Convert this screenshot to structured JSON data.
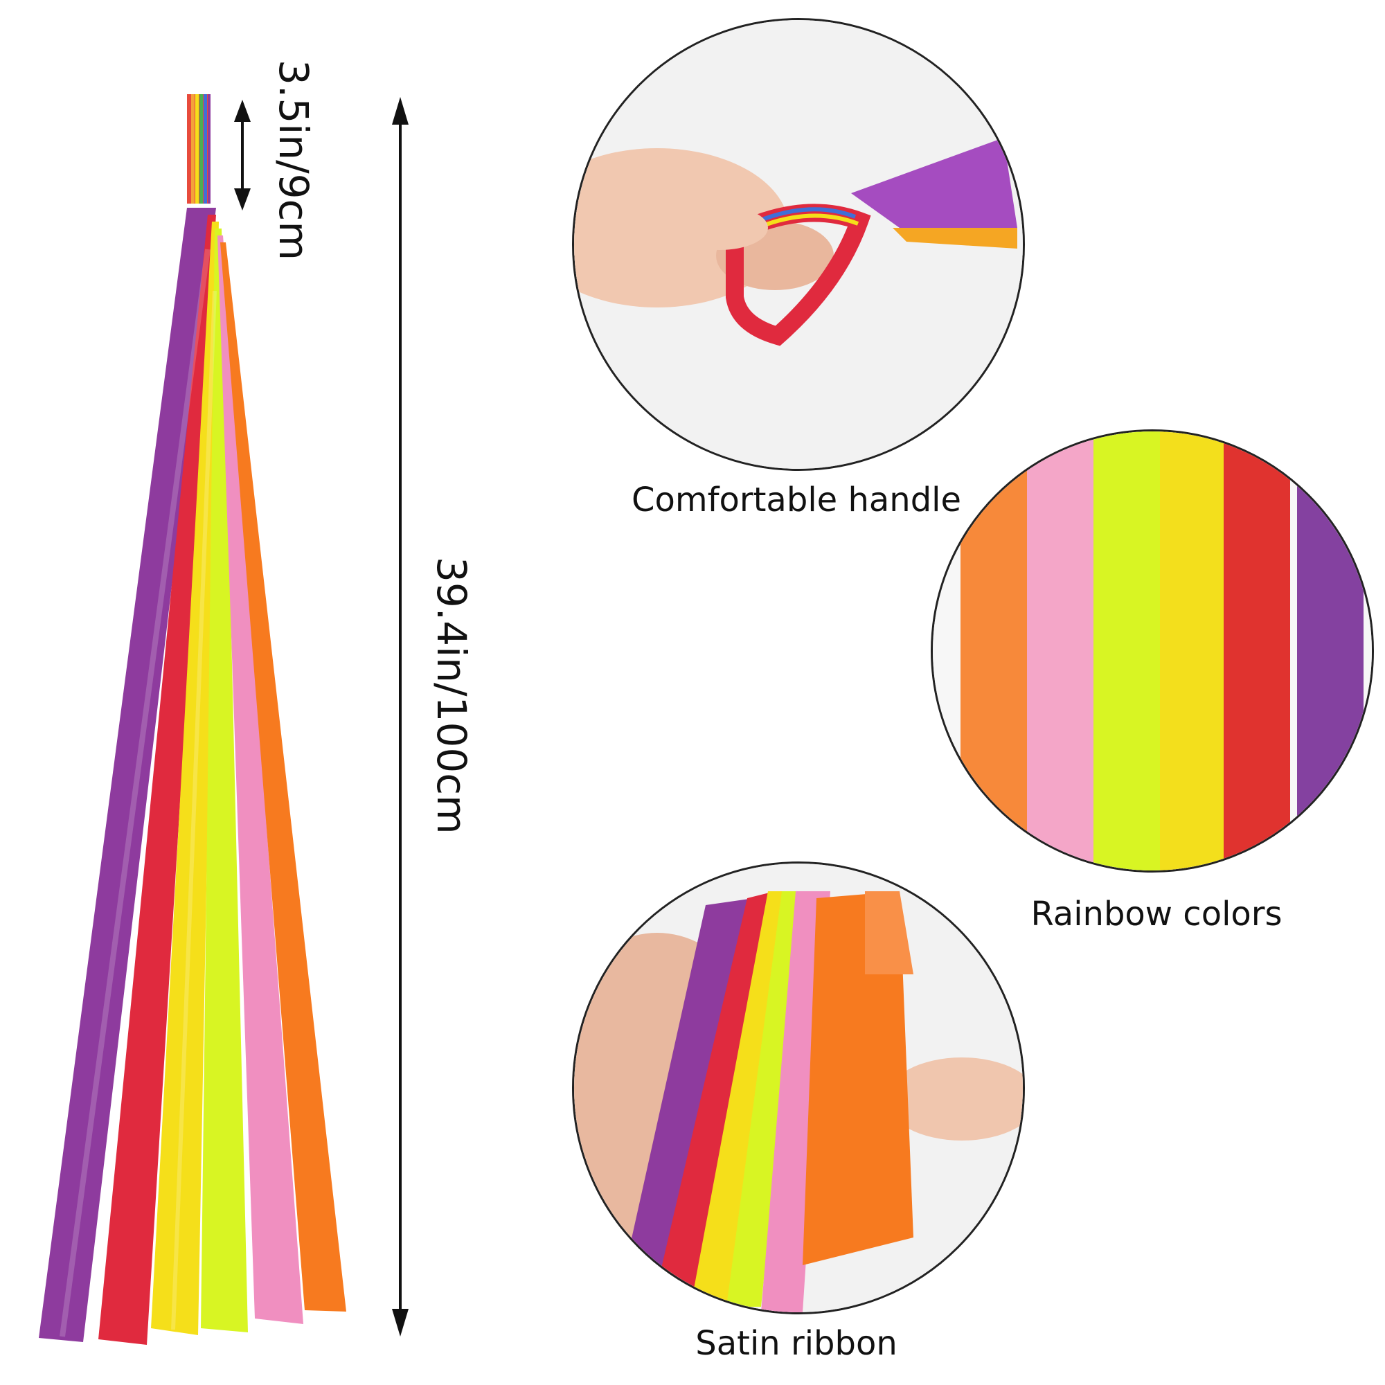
{
  "dimensions": {
    "handle_length": "3.5in/9cm",
    "total_length": "39.4in/100cm"
  },
  "captions": {
    "handle": "Comfortable handle",
    "colors": "Rainbow colors",
    "material": "Satin ribbon"
  },
  "ribbon_colors": [
    "#8e3b9e",
    "#e02a3e",
    "#f5df1a",
    "#d8f523",
    "#f08fc0",
    "#f77a1f"
  ],
  "icons": [
    "rainbow-streamer-image",
    "hand-holding-handle-image",
    "ribbon-strips-image",
    "hand-holding-ribbons-image"
  ]
}
